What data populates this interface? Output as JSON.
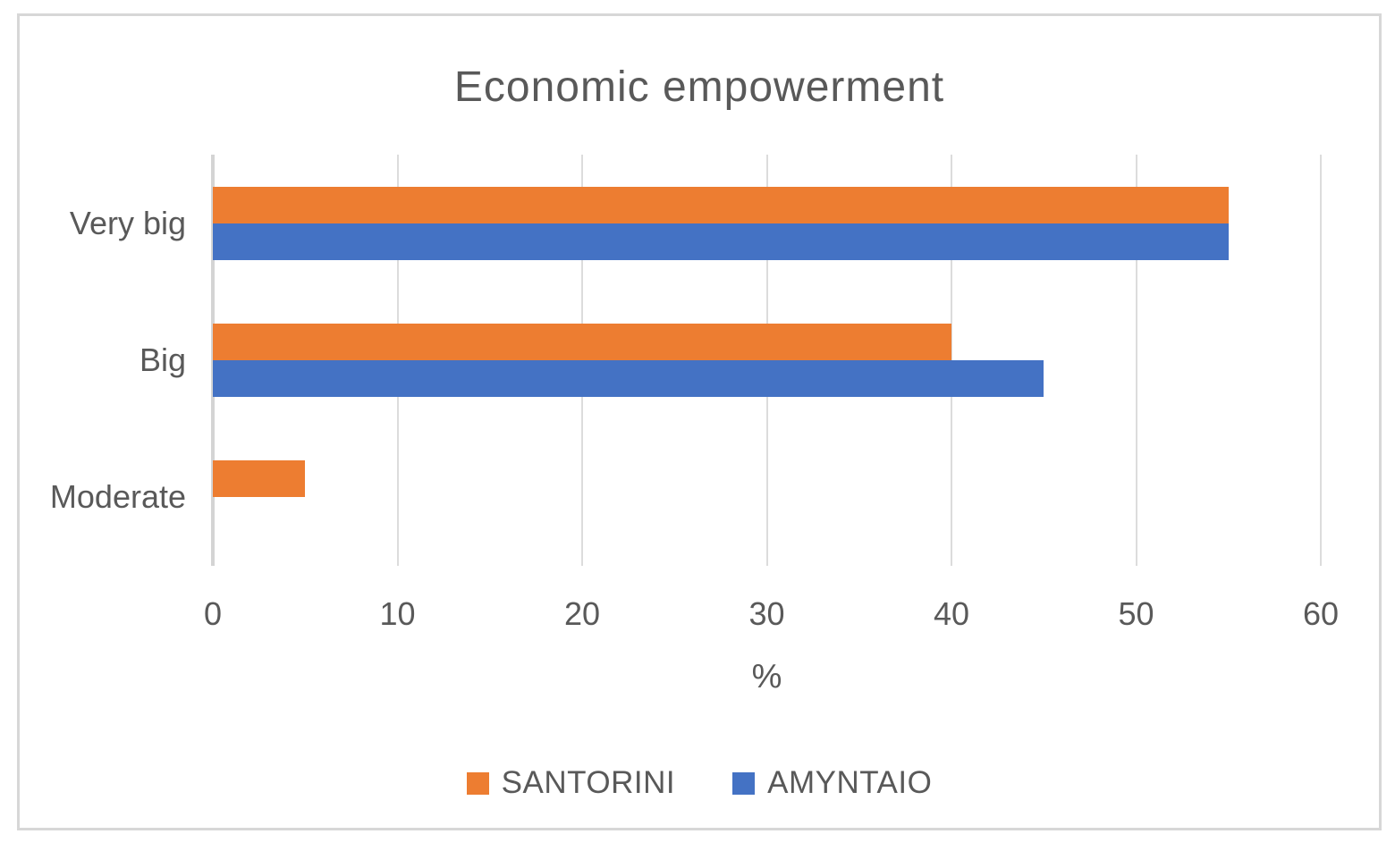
{
  "chart_data": {
    "type": "bar",
    "orientation": "horizontal",
    "title": "Economic empowerment",
    "xlabel": "%",
    "categories": [
      "Very big",
      "Big",
      "Moderate"
    ],
    "series": [
      {
        "name": "SANTORINI",
        "color": "#ED7D31",
        "values": [
          55,
          40,
          5
        ]
      },
      {
        "name": "AMYNTAIO",
        "color": "#4472C4",
        "values": [
          55,
          45,
          0
        ]
      }
    ],
    "x_ticks": [
      0,
      10,
      20,
      30,
      40,
      50,
      60
    ],
    "xlim": [
      0,
      60
    ],
    "grid": "vertical-gridlines-on",
    "legend_position": "bottom"
  },
  "colors": {
    "text": "#595959",
    "gridline": "#DCDCDC",
    "frame_border": "#D7D7D7",
    "background": "#FFFFFF"
  }
}
